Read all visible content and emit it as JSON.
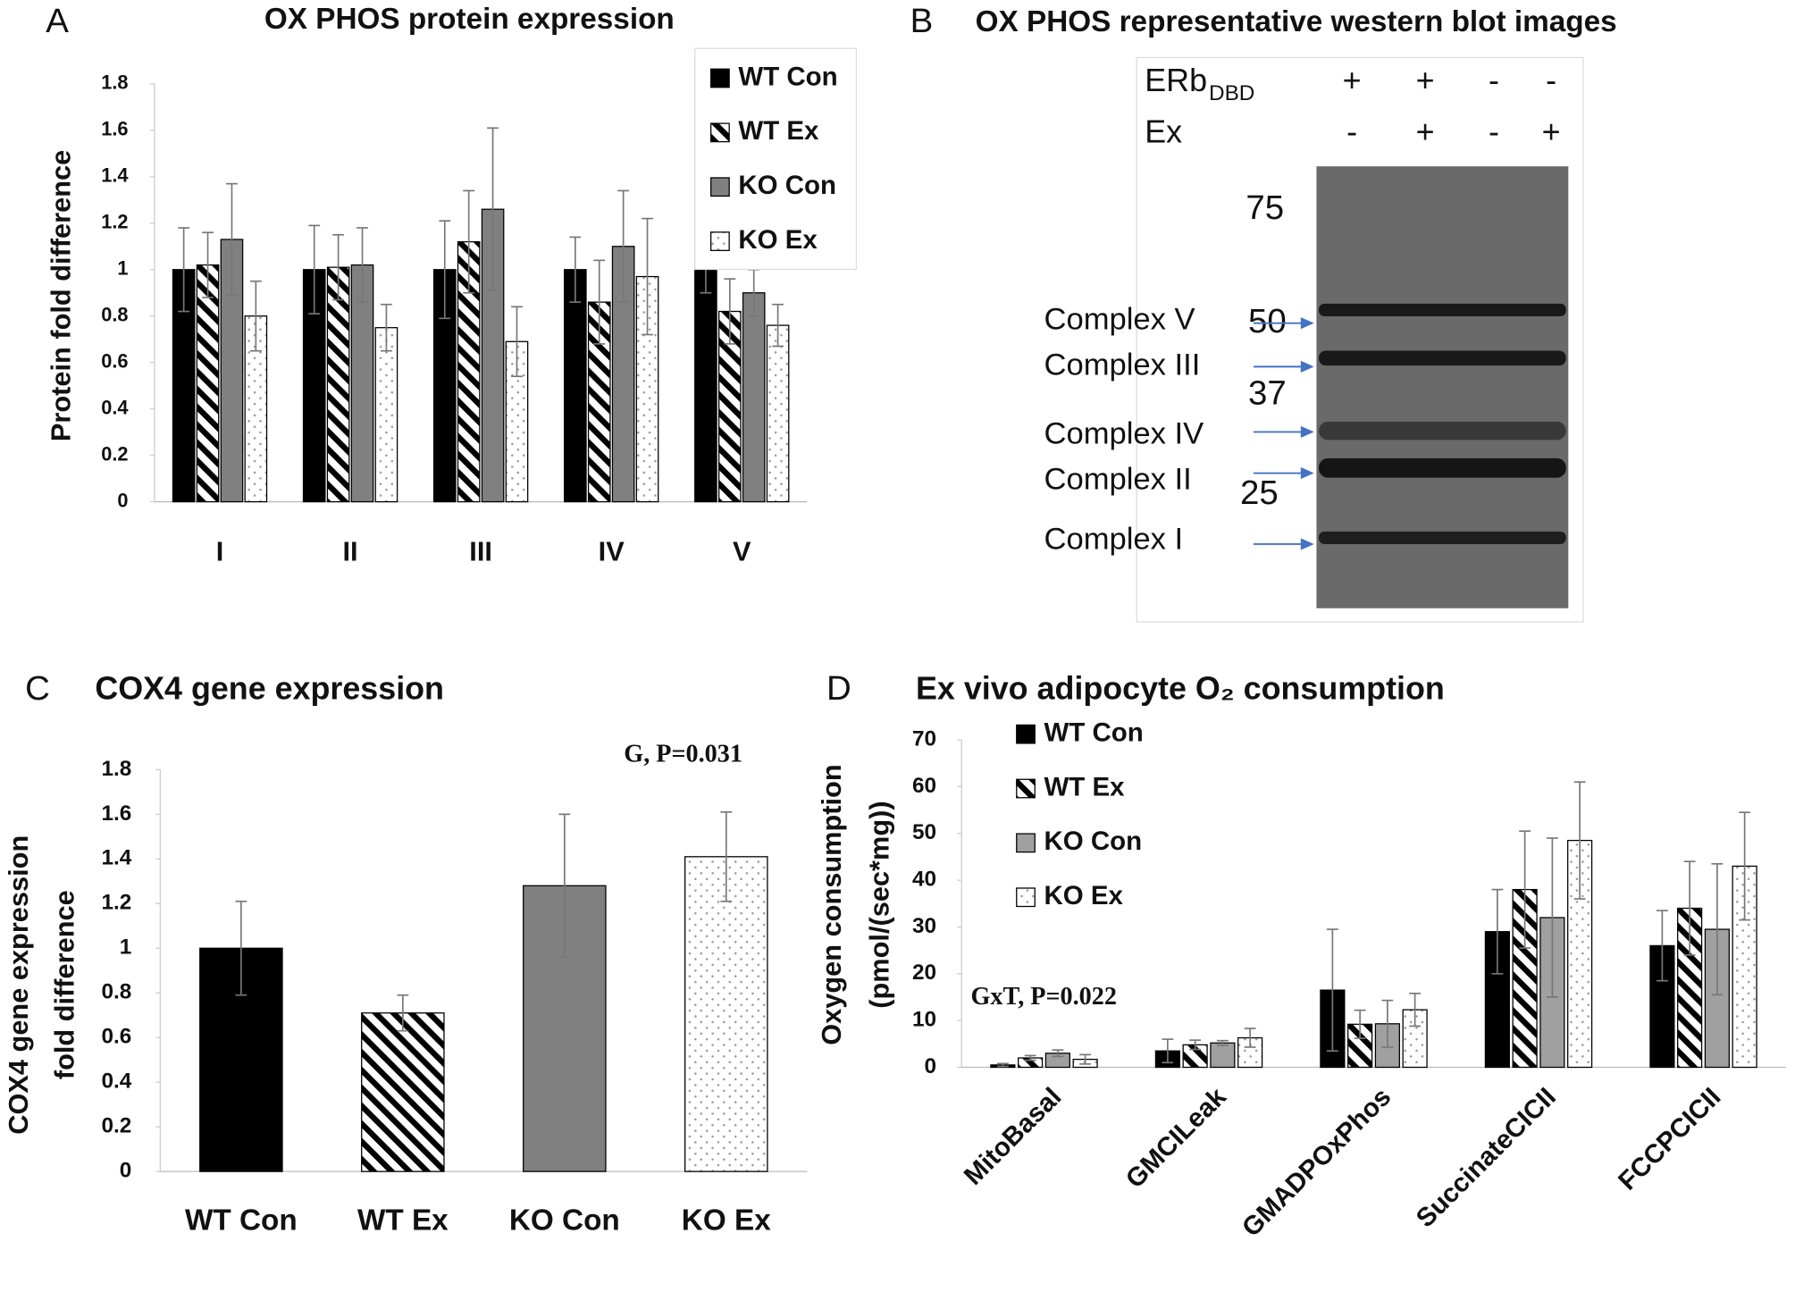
{
  "chart_data": [
    {
      "type": "bar",
      "panel_label": "A",
      "title": "OX PHOS protein expression",
      "ylabel": "Protein fold difference",
      "categories": [
        "I",
        "II",
        "III",
        "IV",
        "V"
      ],
      "series": [
        {
          "name": "WT Con",
          "color": "#000000",
          "fill": "solid",
          "values": [
            1.0,
            1.0,
            1.0,
            1.0,
            1.0
          ],
          "errors": [
            0.18,
            0.19,
            0.21,
            0.14,
            0.1
          ]
        },
        {
          "name": "WT Ex",
          "color": "#000000",
          "fill": "hatch",
          "values": [
            1.02,
            1.01,
            1.12,
            0.86,
            0.82
          ],
          "errors": [
            0.14,
            0.14,
            0.22,
            0.18,
            0.14
          ]
        },
        {
          "name": "KO Con",
          "color": "#808080",
          "fill": "solid",
          "values": [
            1.13,
            1.02,
            1.26,
            1.1,
            0.9
          ],
          "errors": [
            0.24,
            0.16,
            0.35,
            0.24,
            0.1
          ]
        },
        {
          "name": "KO Ex",
          "color": "#999999",
          "fill": "dots",
          "values": [
            0.8,
            0.75,
            0.69,
            0.97,
            0.76
          ],
          "errors": [
            0.15,
            0.1,
            0.15,
            0.25,
            0.09
          ]
        }
      ],
      "ylim": [
        0,
        1.8
      ],
      "yticks": [
        0,
        0.2,
        0.4,
        0.6,
        0.8,
        1,
        1.2,
        1.4,
        1.6,
        1.8
      ],
      "grid": false,
      "legend": "upper right"
    },
    {
      "type": "bar",
      "panel_label": "C",
      "title": "COX4 gene expression",
      "ylabel": [
        "COX4 gene expression",
        "fold difference"
      ],
      "annotation": "G, P=0.031",
      "categories": [
        "WT Con",
        "WT Ex",
        "KO Con",
        "KO Ex"
      ],
      "values": [
        1.0,
        0.71,
        1.28,
        1.41
      ],
      "errors": [
        0.21,
        0.08,
        0.32,
        0.2
      ],
      "bar_styles": [
        {
          "color": "#000000",
          "fill": "solid"
        },
        {
          "color": "#000000",
          "fill": "hatch"
        },
        {
          "color": "#808080",
          "fill": "solid"
        },
        {
          "color": "#999999",
          "fill": "dots"
        }
      ],
      "ylim": [
        0,
        1.8
      ],
      "yticks": [
        0,
        0.2,
        0.4,
        0.6,
        0.8,
        1,
        1.2,
        1.4,
        1.6,
        1.8
      ],
      "grid": false
    },
    {
      "type": "bar",
      "panel_label": "D",
      "title": "Ex vivo adipocyte O₂ consumption",
      "ylabel": [
        "Oxygen consumption",
        "(pmol/(sec*mg))"
      ],
      "annotation": "GxT, P=0.022",
      "categories": [
        "MitoBasal",
        "GMCILeak",
        "GMADPOxPhos",
        "SuccinateCICII",
        "FCCPCICII"
      ],
      "series": [
        {
          "name": "WT Con",
          "color": "#000000",
          "fill": "solid",
          "values": [
            0.5,
            3.5,
            16.5,
            29,
            26
          ],
          "errors": [
            0.3,
            2.5,
            13,
            9,
            7.5
          ]
        },
        {
          "name": "WT Ex",
          "color": "#000000",
          "fill": "hatch",
          "values": [
            2,
            4.8,
            9.2,
            38,
            34
          ],
          "errors": [
            0.5,
            1,
            3,
            12.5,
            10
          ]
        },
        {
          "name": "KO Con",
          "color": "#a0a0a0",
          "fill": "solid",
          "values": [
            3,
            5.2,
            9.3,
            32,
            29.5
          ],
          "errors": [
            0.7,
            0.5,
            5,
            17,
            14
          ]
        },
        {
          "name": "KO Ex",
          "color": "#999999",
          "fill": "dots",
          "values": [
            1.7,
            6.3,
            12.3,
            48.5,
            43
          ],
          "errors": [
            1,
            2,
            3.5,
            12.5,
            11.5
          ]
        }
      ],
      "ylim": [
        0,
        70
      ],
      "yticks": [
        0,
        10,
        20,
        30,
        40,
        50,
        60,
        70
      ],
      "grid": false,
      "legend": "upper left"
    }
  ],
  "blot": {
    "panel_label": "B",
    "title": "OX PHOS representative western blot images",
    "rows": [
      {
        "label": "ERb",
        "label_sub": "DBD",
        "signs": [
          "+",
          "+",
          "-",
          "-"
        ]
      },
      {
        "label": "Ex",
        "signs": [
          "-",
          "+",
          "-",
          "+"
        ]
      }
    ],
    "markers": [
      "75",
      "50",
      "37",
      "25"
    ],
    "complexes": [
      "Complex V",
      "Complex III",
      "Complex IV",
      "Complex II",
      "Complex I"
    ]
  }
}
